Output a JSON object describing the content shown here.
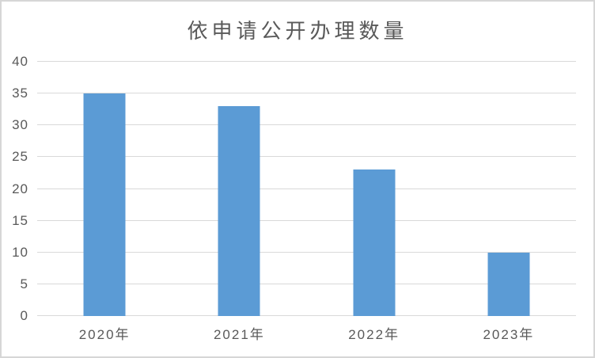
{
  "chart_data": {
    "type": "bar",
    "title": "依申请公开办理数量",
    "categories": [
      "2020年",
      "2021年",
      "2022年",
      "2023年"
    ],
    "values": [
      35,
      33,
      23,
      10
    ],
    "xlabel": "",
    "ylabel": "",
    "ylim": [
      0,
      40
    ],
    "yticks": [
      0,
      5,
      10,
      15,
      20,
      25,
      30,
      35,
      40
    ],
    "grid": "horizontal",
    "legend": "none",
    "bar_color": "#5b9bd5",
    "gridline_color": "#d9d9d9",
    "text_color": "#595959",
    "background_color": "#ffffff",
    "border_color": "#d6d6d6"
  }
}
